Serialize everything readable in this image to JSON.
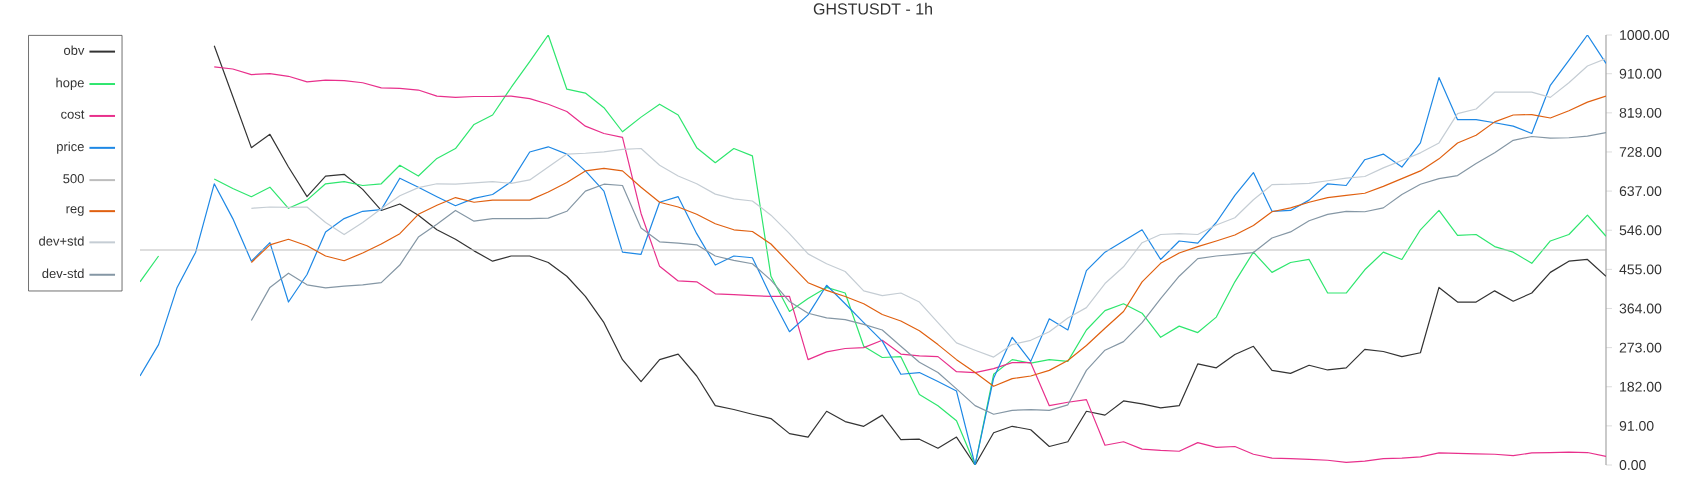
{
  "chart_data": {
    "type": "line",
    "title": "GHSTUSDT - 1h",
    "categories": [
      null,
      null,
      null,
      null,
      null,
      null,
      null,
      null,
      null,
      null,
      null,
      null,
      null,
      null,
      null,
      null,
      null,
      null,
      null,
      null,
      null,
      null,
      null,
      null,
      null,
      null,
      null,
      null,
      null,
      null,
      null,
      null,
      null,
      null,
      null,
      null,
      null,
      null,
      null,
      null,
      null,
      null,
      null,
      null,
      null,
      null,
      null,
      null,
      null,
      null,
      null,
      null,
      null,
      null,
      null,
      null,
      null,
      null,
      null,
      null,
      null,
      null,
      null,
      null,
      null,
      null,
      null,
      null,
      null,
      null,
      null,
      null,
      null,
      null,
      null,
      null,
      null,
      null,
      null,
      null
    ],
    "series": [
      {
        "name": "obv",
        "color": "#333333",
        "values": [
          null,
          null,
          null,
          null,
          975,
          857,
          738,
          769,
          693,
          624,
          672,
          676,
          641,
          592,
          607,
          581,
          547,
          525,
          498,
          474,
          486,
          486,
          471,
          439,
          392,
          331,
          245,
          194,
          245,
          258,
          207,
          138,
          129,
          118,
          108,
          73,
          65,
          125,
          101,
          90,
          116,
          59,
          60,
          39,
          65,
          0,
          75,
          90,
          82,
          43,
          54,
          125,
          116,
          149,
          142,
          133,
          138,
          235,
          226,
          257,
          276,
          220,
          213,
          232,
          221,
          226,
          269,
          264,
          252,
          261,
          413,
          379,
          379,
          405,
          381,
          400,
          448,
          474,
          478,
          439
        ]
      },
      {
        "name": "hope",
        "color": "#2ee66e",
        "values": [
          426,
          486,
          null,
          null,
          665,
          643,
          624,
          646,
          597,
          616,
          654,
          659,
          650,
          654,
          697,
          672,
          713,
          736,
          792,
          814,
          878,
          938,
          1000,
          874,
          865,
          831,
          775,
          809,
          839,
          814,
          738,
          703,
          736,
          719,
          439,
          357,
          387,
          413,
          400,
          276,
          250,
          252,
          164,
          138,
          103,
          0,
          211,
          245,
          237,
          245,
          241,
          314,
          359,
          375,
          353,
          297,
          323,
          308,
          344,
          426,
          495,
          448,
          471,
          478,
          400,
          400,
          454,
          495,
          478,
          547,
          592,
          534,
          536,
          508,
          495,
          469,
          521,
          536,
          581,
          532
        ]
      },
      {
        "name": "cost",
        "color": "#e8308c",
        "values": [
          null,
          null,
          null,
          null,
          926,
          921,
          908,
          910,
          904,
          891,
          895,
          894,
          889,
          877,
          876,
          872,
          858,
          855,
          857,
          857,
          858,
          852,
          839,
          822,
          788,
          771,
          762,
          585,
          462,
          428,
          426,
          398,
          396,
          394,
          392,
          392,
          245,
          263,
          271,
          273,
          290,
          258,
          254,
          252,
          217,
          215,
          224,
          238,
          238,
          138,
          146,
          152,
          46,
          54,
          37,
          34,
          32,
          52,
          41,
          43,
          25,
          16,
          15,
          13,
          11,
          6,
          9,
          15,
          16,
          19,
          28,
          27,
          26,
          25,
          22,
          28,
          29,
          30,
          29,
          20
        ]
      },
      {
        "name": "price",
        "color": "#1e88e5",
        "values": [
          207,
          280,
          413,
          495,
          654,
          573,
          474,
          517,
          379,
          443,
          542,
          573,
          590,
          594,
          667,
          646,
          624,
          603,
          620,
          629,
          659,
          728,
          740,
          723,
          684,
          637,
          495,
          490,
          611,
          624,
          538,
          465,
          486,
          482,
          392,
          310,
          349,
          418,
          375,
          331,
          288,
          211,
          215,
          194,
          172,
          0,
          202,
          297,
          241,
          340,
          314,
          452,
          495,
          521,
          547,
          478,
          521,
          516,
          564,
          627,
          680,
          590,
          592,
          616,
          654,
          650,
          710,
          723,
          693,
          749,
          901,
          803,
          803,
          796,
          788,
          771,
          883,
          941,
          1000,
          934
        ]
      },
      {
        "name": "500",
        "color": "#bdbdbd",
        "values": [
          500,
          500,
          500,
          500,
          500,
          500,
          500,
          500,
          500,
          500,
          500,
          500,
          500,
          500,
          500,
          500,
          500,
          500,
          500,
          500,
          500,
          500,
          500,
          500,
          500,
          500,
          500,
          500,
          500,
          500,
          500,
          500,
          500,
          500,
          500,
          500,
          500,
          500,
          500,
          500,
          500,
          500,
          500,
          500,
          500,
          500,
          500,
          500,
          500,
          500,
          500,
          500,
          500,
          500,
          500,
          500,
          500,
          500,
          500,
          500,
          500,
          500,
          500,
          500,
          500,
          500,
          500,
          500,
          500,
          500,
          500,
          500,
          500,
          500,
          500,
          500,
          500,
          500,
          500,
          500
        ]
      },
      {
        "name": "reg",
        "color": "#e06010",
        "values": [
          null,
          null,
          null,
          null,
          null,
          null,
          471,
          512,
          525,
          510,
          486,
          475,
          493,
          514,
          538,
          583,
          604,
          622,
          611,
          616,
          616,
          616,
          635,
          657,
          684,
          690,
          684,
          646,
          611,
          600,
          583,
          561,
          547,
          543,
          514,
          469,
          424,
          406,
          392,
          375,
          350,
          335,
          312,
          280,
          245,
          215,
          183,
          201,
          207,
          220,
          243,
          278,
          318,
          357,
          426,
          469,
          493,
          508,
          521,
          535,
          557,
          589,
          598,
          611,
          622,
          627,
          632,
          648,
          666,
          684,
          712,
          749,
          767,
          798,
          814,
          815,
          807,
          824,
          844,
          858
        ]
      },
      {
        "name": "dev+std",
        "color": "#c5cdd4",
        "values": [
          null,
          null,
          null,
          null,
          null,
          null,
          597,
          600,
          599,
          600,
          564,
          536,
          564,
          596,
          626,
          645,
          654,
          653,
          656,
          659,
          655,
          663,
          693,
          723,
          725,
          728,
          734,
          736,
          697,
          672,
          654,
          630,
          619,
          614,
          581,
          538,
          491,
          468,
          450,
          405,
          394,
          400,
          379,
          331,
          284,
          267,
          251,
          280,
          290,
          310,
          342,
          366,
          422,
          461,
          517,
          536,
          538,
          536,
          558,
          575,
          617,
          652,
          653,
          655,
          661,
          667,
          671,
          691,
          708,
          726,
          749,
          817,
          828,
          867,
          867,
          867,
          855,
          889,
          928,
          945
        ]
      },
      {
        "name": "dev-std",
        "color": "#8597a5",
        "values": [
          null,
          null,
          null,
          null,
          null,
          null,
          336,
          413,
          446,
          419,
          412,
          416,
          419,
          424,
          465,
          530,
          560,
          592,
          567,
          573,
          573,
          573,
          574,
          590,
          637,
          653,
          650,
          551,
          519,
          516,
          512,
          486,
          476,
          468,
          430,
          380,
          353,
          342,
          338,
          327,
          314,
          276,
          239,
          215,
          177,
          138,
          118,
          127,
          129,
          127,
          140,
          220,
          267,
          287,
          331,
          387,
          439,
          480,
          486,
          490,
          494,
          528,
          542,
          568,
          583,
          590,
          589,
          598,
          629,
          653,
          666,
          673,
          701,
          726,
          755,
          764,
          760,
          761,
          765,
          773
        ]
      }
    ],
    "ylim": [
      0,
      1000
    ],
    "yticks": [
      {
        "value": 0,
        "label": "0.00"
      },
      {
        "value": 91,
        "label": "91.00"
      },
      {
        "value": 182,
        "label": "182.00"
      },
      {
        "value": 273,
        "label": "273.00"
      },
      {
        "value": 364,
        "label": "364.00"
      },
      {
        "value": 455,
        "label": "455.00"
      },
      {
        "value": 546,
        "label": "546.00"
      },
      {
        "value": 637,
        "label": "637.00"
      },
      {
        "value": 728,
        "label": "728.00"
      },
      {
        "value": 819,
        "label": "819.00"
      },
      {
        "value": 910,
        "label": "910.00"
      },
      {
        "value": 1000,
        "label": "1000.00"
      }
    ],
    "tick_labels": "y",
    "legend": "left"
  }
}
